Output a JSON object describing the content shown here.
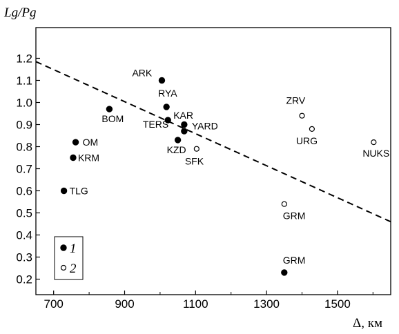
{
  "chart_data": {
    "type": "scatter",
    "ylabel": "Lg/Pg",
    "xlabel": "Δ, км",
    "xlim": [
      650,
      1650
    ],
    "ylim": [
      0.17,
      1.22
    ],
    "x_ticks": [
      "700",
      "900",
      "1100",
      "1300",
      "1500"
    ],
    "y_ticks": [
      "0.2",
      "0.3",
      "0.4",
      "0.5",
      "0.6",
      "0.7",
      "0.8",
      "0.9",
      "1.0",
      "1.1",
      "1.2"
    ],
    "x_tick_values": [
      700,
      900,
      1100,
      1300,
      1500
    ],
    "y_tick_values": [
      0.2,
      0.3,
      0.4,
      0.5,
      0.6,
      0.7,
      0.8,
      0.9,
      1.0,
      1.1,
      1.2
    ],
    "series": [
      {
        "name": "1",
        "marker": "filled-circle",
        "points": [
          {
            "label": "ARK",
            "x": 1005,
            "y": 1.1
          },
          {
            "label": "RYA",
            "x": 1018,
            "y": 0.98
          },
          {
            "label": "BOM",
            "x": 857,
            "y": 0.97
          },
          {
            "label": "KAR",
            "x": 1022,
            "y": 0.92
          },
          {
            "label": "YARD",
            "x": 1068,
            "y": 0.9
          },
          {
            "label": "TERS",
            "x": 1068,
            "y": 0.87
          },
          {
            "label": "KZD",
            "x": 1050,
            "y": 0.83
          },
          {
            "label": "OM",
            "x": 762,
            "y": 0.82
          },
          {
            "label": "KRM",
            "x": 755,
            "y": 0.75
          },
          {
            "label": "TLG",
            "x": 729,
            "y": 0.6
          },
          {
            "label": "GRM",
            "x": 1350,
            "y": 0.23
          }
        ]
      },
      {
        "name": "2",
        "marker": "open-circle",
        "points": [
          {
            "label": "ZRV",
            "x": 1400,
            "y": 0.94
          },
          {
            "label": "URG",
            "x": 1428,
            "y": 0.88
          },
          {
            "label": "NUKS",
            "x": 1602,
            "y": 0.82
          },
          {
            "label": "SFK",
            "x": 1103,
            "y": 0.79
          },
          {
            "label": "GRM",
            "x": 1350,
            "y": 0.54
          }
        ]
      }
    ],
    "trend_line": {
      "style": "dashed",
      "from": {
        "x": 650,
        "y": 1.185
      },
      "to": {
        "x": 1650,
        "y": 0.46
      }
    },
    "legend": {
      "position": "bottom-left",
      "items": [
        "1",
        "2"
      ]
    },
    "grid": false
  }
}
